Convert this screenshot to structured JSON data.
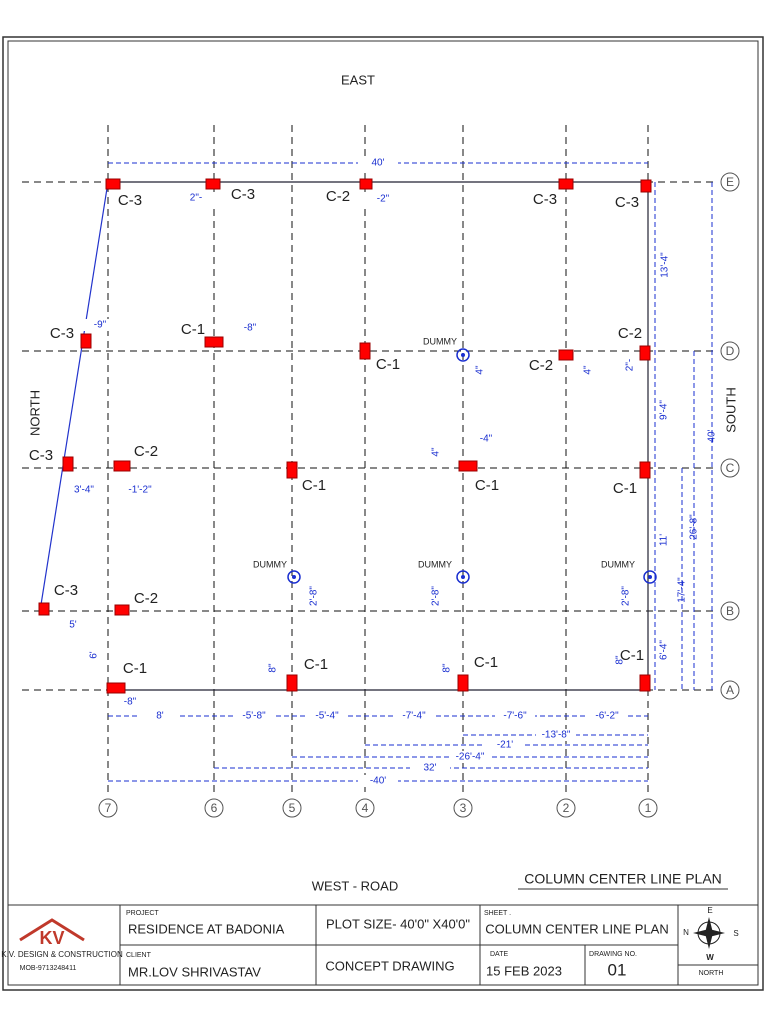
{
  "labels": {
    "east": "EAST",
    "west": "WEST - ROAD",
    "north": "NORTH",
    "south": "SOUTH",
    "plan_title": "COLUMN CENTER LINE PLAN"
  },
  "grid_rows": [
    "E",
    "D",
    "C",
    "B",
    "A"
  ],
  "grid_cols": [
    "7",
    "6",
    "5",
    "4",
    "3",
    "2",
    "1"
  ],
  "columns": [
    "C-3",
    "C-3",
    "C-2",
    "C-3",
    "C-3",
    "C-3",
    "C-1",
    "C-1",
    "C-2",
    "C-2",
    "C-3",
    "C-2",
    "C-1",
    "C-1",
    "C-1",
    "C-3",
    "C-2",
    "C-1",
    "C-1",
    "C-1",
    "C-1"
  ],
  "dummies": [
    "DUMMY",
    "DUMMY",
    "DUMMY",
    "DUMMY"
  ],
  "dimensions": [
    "40'",
    "13'-4\"",
    "40'",
    "9'-4\"",
    "26'-8\"",
    "11'",
    "17'-4\"",
    "6'-4\"",
    "2'-8\"",
    "2'-8\"",
    "2'-8\"",
    "6'",
    "5'",
    "3'-4\"",
    "-1'-2\"",
    "2\"-",
    "-2\"",
    "-9\"",
    "-8\"",
    "4\"",
    "4\"",
    "2\"-",
    "-4\"",
    "4\"",
    "8\"",
    "8\"",
    "8\"",
    "-8\"",
    "8'",
    "-5'-8\"",
    "-5'-4\"",
    "-7'-4\"",
    "-7'-6\"",
    "-6'-2\"",
    "-13'-8\"",
    "-21'",
    "-26'-4\"",
    "32'",
    "-40'"
  ],
  "title_block": {
    "logo_mark": "KV",
    "company": "K.V. DESIGN & CONSTRUCTION",
    "mobile": "MOB-9713248411",
    "project_label": "PROJECT",
    "project": "RESIDENCE AT  BADONIA",
    "client_label": "CLIENT",
    "client": "MR.LOV SHRIVASTAV",
    "plot_size": "PLOT SIZE- 40'0\" X40'0\"",
    "stage": "CONCEPT DRAWING",
    "sheet_label": "SHEET .",
    "sheet": "COLUMN CENTER LINE PLAN",
    "date_label": "DATE",
    "date": "15 FEB 2023",
    "drawing_no_label": "DRAWING NO.",
    "drawing_no": "01",
    "compass_e": "E",
    "compass_n": "N",
    "compass_s": "S",
    "compass_w": "W",
    "compass_caption": "NORTH"
  }
}
